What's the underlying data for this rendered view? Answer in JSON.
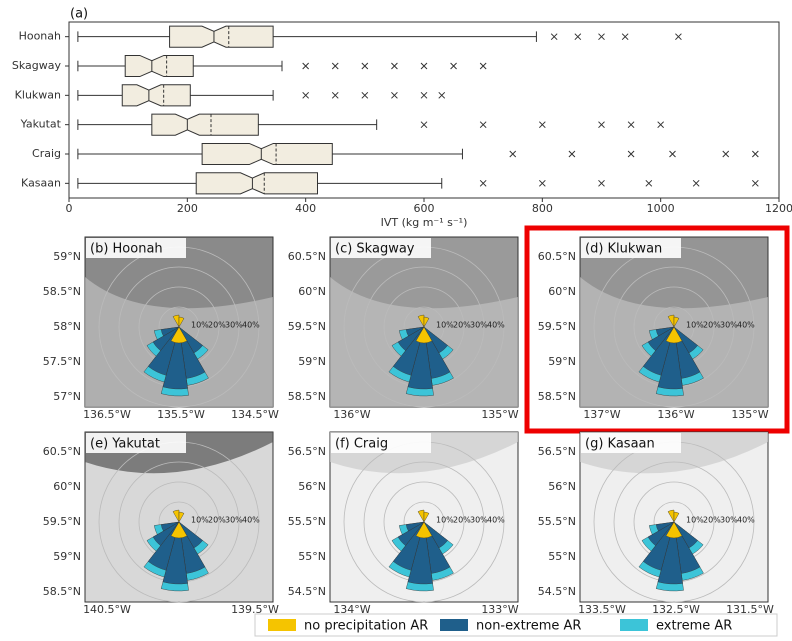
{
  "chart_data": {
    "type": "boxplot",
    "title": "(a)",
    "x_label": "IVT (kg m⁻¹ s⁻¹)",
    "xlim": [
      0,
      1200
    ],
    "xticks": [
      0,
      200,
      400,
      600,
      800,
      1000,
      1200
    ],
    "box_color": "#f2ede0",
    "series": [
      {
        "name": "Hoonah",
        "low": 15,
        "q1": 170,
        "median": 245,
        "mean": 270,
        "q3": 345,
        "high": 790,
        "outliers": [
          820,
          860,
          900,
          940,
          1030
        ]
      },
      {
        "name": "Skagway",
        "low": 15,
        "q1": 95,
        "median": 140,
        "mean": 165,
        "q3": 210,
        "high": 360,
        "outliers": [
          400,
          450,
          500,
          550,
          600,
          650,
          700
        ]
      },
      {
        "name": "Klukwan",
        "low": 15,
        "q1": 90,
        "median": 135,
        "mean": 160,
        "q3": 205,
        "high": 345,
        "outliers": [
          400,
          450,
          500,
          550,
          600,
          630
        ]
      },
      {
        "name": "Yakutat",
        "low": 15,
        "q1": 140,
        "median": 200,
        "mean": 240,
        "q3": 320,
        "high": 520,
        "outliers": [
          600,
          700,
          800,
          900,
          950,
          1000
        ]
      },
      {
        "name": "Craig",
        "low": 15,
        "q1": 225,
        "median": 325,
        "mean": 350,
        "q3": 445,
        "high": 665,
        "outliers": [
          750,
          850,
          950,
          1020,
          1110,
          1160
        ]
      },
      {
        "name": "Kasaan",
        "low": 15,
        "q1": 215,
        "median": 310,
        "mean": 330,
        "q3": 420,
        "high": 630,
        "outliers": [
          700,
          800,
          900,
          980,
          1060,
          1160
        ]
      }
    ]
  },
  "ring_labels": [
    "10%",
    "20%",
    "30%",
    "40%"
  ],
  "maps": [
    {
      "title": "(b) Hoonah",
      "yticks": [
        "59°N",
        "58.5°N",
        "58°N",
        "57.5°N",
        "57°N"
      ],
      "xticks": [
        "136.5°W",
        "135.5°W",
        "134.5°W"
      ]
    },
    {
      "title": "(c) Skagway",
      "yticks": [
        "60.5°N",
        "60°N",
        "59.5°N",
        "59°N",
        "58.5°N"
      ],
      "xticks": [
        "136°W",
        "135°W"
      ]
    },
    {
      "title": "(d) Klukwan",
      "yticks": [
        "60.5°N",
        "60°N",
        "59.5°N",
        "59°N",
        "58.5°N"
      ],
      "xticks": [
        "137°W",
        "136°W",
        "135°W"
      ]
    },
    {
      "title": "(e) Yakutat",
      "yticks": [
        "60.5°N",
        "60°N",
        "59.5°N",
        "59°N",
        "58.5°N"
      ],
      "xticks": [
        "140.5°W",
        "139.5°W"
      ]
    },
    {
      "title": "(f) Craig",
      "yticks": [
        "56.5°N",
        "56°N",
        "55.5°N",
        "55°N",
        "54.5°N"
      ],
      "xticks": [
        "134°W",
        "133°W"
      ]
    },
    {
      "title": "(g) Kasaan",
      "yticks": [
        "56.5°N",
        "56°N",
        "55.5°N",
        "55°N",
        "54.5°N"
      ],
      "xticks": [
        "133.5°W",
        "132.5°W",
        "131.5°W"
      ]
    }
  ],
  "legend": [
    {
      "name": "no precipitation AR",
      "color": "#f5c400"
    },
    {
      "name": "non-extreme AR",
      "color": "#1f5f8b"
    },
    {
      "name": "extreme AR",
      "color": "#3cc4d8"
    }
  ]
}
